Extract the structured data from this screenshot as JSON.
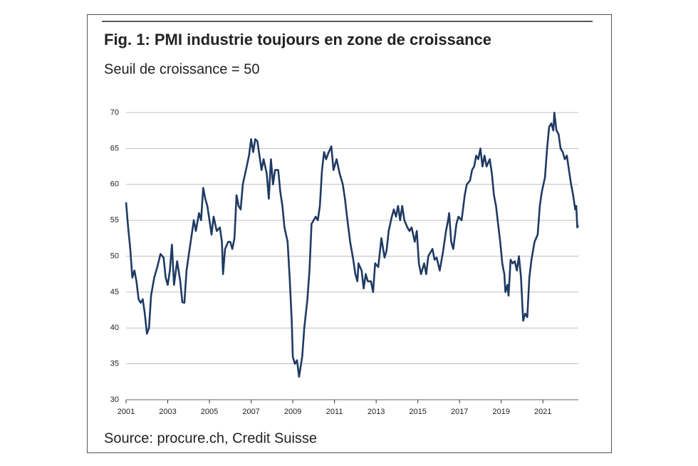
{
  "chart_data": {
    "type": "line",
    "title": "Fig. 1: PMI industrie toujours en zone de croissance",
    "subtitle": "Seuil de croissance = 50",
    "source": "Source: procure.ch, Credit Suisse",
    "x": [
      2001.0,
      2001.1,
      2001.2,
      2001.3,
      2001.4,
      2001.5,
      2001.6,
      2001.7,
      2001.8,
      2001.9,
      2002.0,
      2002.1,
      2002.2,
      2002.35,
      2002.5,
      2002.65,
      2002.8,
      2002.9,
      2003.0,
      2003.1,
      2003.2,
      2003.3,
      2003.45,
      2003.6,
      2003.7,
      2003.8,
      2003.9,
      2004.1,
      2004.25,
      2004.35,
      2004.5,
      2004.6,
      2004.7,
      2004.8,
      2004.9,
      2005.0,
      2005.1,
      2005.2,
      2005.35,
      2005.5,
      2005.6,
      2005.65,
      2005.75,
      2005.9,
      2006.0,
      2006.1,
      2006.2,
      2006.3,
      2006.4,
      2006.5,
      2006.6,
      2006.75,
      2006.9,
      2007.0,
      2007.1,
      2007.2,
      2007.3,
      2007.4,
      2007.5,
      2007.6,
      2007.75,
      2007.85,
      2007.95,
      2008.05,
      2008.15,
      2008.3,
      2008.4,
      2008.5,
      2008.6,
      2008.75,
      2008.85,
      2008.95,
      2009.0,
      2009.1,
      2009.2,
      2009.3,
      2009.45,
      2009.55,
      2009.7,
      2009.8,
      2009.9,
      2010.1,
      2010.2,
      2010.3,
      2010.4,
      2010.5,
      2010.6,
      2010.7,
      2010.85,
      2010.95,
      2011.1,
      2011.25,
      2011.4,
      2011.5,
      2011.6,
      2011.75,
      2011.9,
      2012.0,
      2012.1,
      2012.15,
      2012.3,
      2012.4,
      2012.5,
      2012.6,
      2012.75,
      2012.85,
      2012.95,
      2013.1,
      2013.25,
      2013.4,
      2013.5,
      2013.6,
      2013.75,
      2013.85,
      2013.95,
      2014.05,
      2014.15,
      2014.25,
      2014.35,
      2014.5,
      2014.6,
      2014.7,
      2014.85,
      2014.95,
      2015.05,
      2015.15,
      2015.3,
      2015.4,
      2015.5,
      2015.6,
      2015.7,
      2015.8,
      2015.9,
      2016.05,
      2016.2,
      2016.35,
      2016.45,
      2016.5,
      2016.6,
      2016.7,
      2016.85,
      2016.95,
      2017.1,
      2017.25,
      2017.35,
      2017.5,
      2017.6,
      2017.7,
      2017.8,
      2017.9,
      2018.0,
      2018.1,
      2018.2,
      2018.3,
      2018.45,
      2018.55,
      2018.65,
      2018.75,
      2018.85,
      2018.95,
      2019.05,
      2019.15,
      2019.2,
      2019.3,
      2019.35,
      2019.45,
      2019.55,
      2019.65,
      2019.75,
      2019.85,
      2019.95,
      2020.05,
      2020.15,
      2020.25,
      2020.35,
      2020.45,
      2020.6,
      2020.75,
      2020.85,
      2020.95,
      2021.1,
      2021.2,
      2021.3,
      2021.4,
      2021.5,
      2021.55,
      2021.65,
      2021.75,
      2021.85,
      2021.95,
      2022.05,
      2022.15,
      2022.25,
      2022.35,
      2022.45,
      2022.55,
      2022.6,
      2022.65,
      2022.7
    ],
    "series": [
      {
        "color": "#1f3a63",
        "values": [
          57.5,
          54,
          51,
          47,
          48,
          46.5,
          44,
          43.5,
          44,
          42,
          39.2,
          40,
          44.5,
          47,
          48.5,
          50.3,
          49.8,
          47,
          46,
          48,
          51.6,
          46,
          49.3,
          46.5,
          43.6,
          43.5,
          48,
          52,
          55,
          53.5,
          56,
          55,
          59.5,
          58,
          57,
          55,
          53,
          55.5,
          53.5,
          54,
          52,
          47.5,
          51,
          52,
          52,
          51,
          52.5,
          58.5,
          57,
          56.5,
          60,
          62,
          64,
          66.3,
          64.5,
          66.3,
          66,
          64,
          62,
          63.5,
          61.5,
          58,
          63.5,
          60,
          62,
          62,
          59,
          57,
          54,
          52,
          47,
          41,
          36,
          35,
          35.5,
          33.2,
          36,
          40,
          44,
          48,
          54.5,
          55.5,
          55,
          57,
          62,
          64.5,
          63.5,
          64.3,
          65.3,
          62,
          63.5,
          61.5,
          60,
          58,
          55.5,
          52,
          49.5,
          47.5,
          46.5,
          49,
          48,
          45.5,
          47.5,
          46.5,
          46.5,
          45,
          49,
          48.5,
          52.5,
          49.8,
          50.8,
          53.5,
          55.5,
          56.5,
          55.5,
          57,
          55,
          57,
          55,
          54,
          53.5,
          54,
          52,
          53.5,
          49,
          47.5,
          49,
          47.5,
          50,
          50.5,
          51,
          49.5,
          49.8,
          48,
          50.5,
          53.5,
          55,
          56,
          52,
          51,
          54.5,
          55.5,
          55,
          58.5,
          60,
          60.5,
          62,
          62.5,
          64,
          63.5,
          65,
          62.5,
          64,
          62.5,
          63.5,
          61.5,
          58.5,
          57,
          54.5,
          52,
          49,
          47.5,
          45,
          46,
          44.5,
          49.5,
          49,
          49.3,
          48,
          50,
          47,
          41,
          42,
          41.5,
          47,
          49.5,
          52,
          53,
          57,
          59,
          61,
          65,
          68,
          68.5,
          67.5,
          70,
          67.5,
          67,
          65,
          64.5,
          63.5,
          64,
          62,
          60,
          58.5,
          56.5,
          57,
          54,
          54.3
        ]
      }
    ],
    "xlim": [
      2001,
      2022.7
    ],
    "xticks": [
      2001,
      2003,
      2005,
      2007,
      2009,
      2011,
      2013,
      2015,
      2017,
      2019,
      2021
    ],
    "ylim": [
      30,
      70
    ],
    "yticks": [
      30,
      35,
      40,
      45,
      50,
      55,
      60,
      65,
      70
    ],
    "grid": true
  }
}
